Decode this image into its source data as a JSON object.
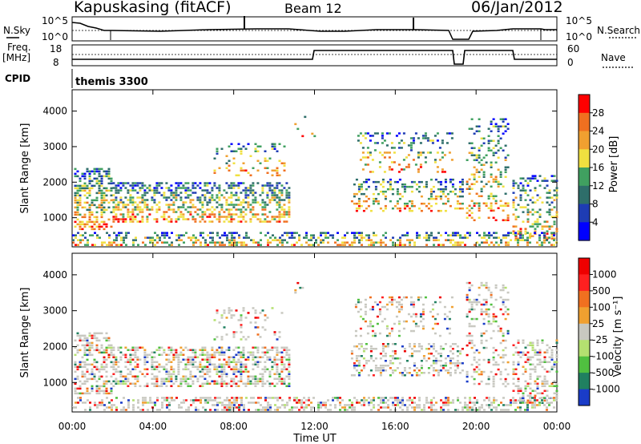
{
  "header": {
    "station": "Kapuskasing (fitACF)",
    "beam": "Beam 12",
    "date": "06/Jan/2012"
  },
  "params": {
    "nsky_label": "N.Sky",
    "nsearch_label": "N.Search",
    "freq_label": "Freq.",
    "freq_unit": "[MHz]",
    "nave_label": "Nave",
    "cpid_label": "CPID",
    "cpid_value": "themis 3300",
    "noise_ticks": [
      "10^5",
      "10^0"
    ],
    "freq_ticks": [
      "18",
      "8"
    ],
    "nave_ticks": [
      "60",
      "0"
    ]
  },
  "chart_data": [
    {
      "type": "heatmap",
      "title": "Power",
      "xlabel": "",
      "ylabel": "Slant Range [km]",
      "x_ticks": [
        "00:00",
        "04:00",
        "08:00",
        "12:00",
        "16:00",
        "20:00",
        "00:00"
      ],
      "xlim_hours": [
        0,
        24
      ],
      "y_ticks": [
        1000,
        2000,
        3000,
        4000
      ],
      "ylim": [
        180,
        4600
      ],
      "colorbar": {
        "label": "Power [dB]",
        "ticks": [
          4,
          8,
          12,
          16,
          20,
          24,
          28
        ],
        "colors": [
          "#0000ff",
          "#1e3cb4",
          "#2e6e6a",
          "#40a060",
          "#f0e040",
          "#f0a030",
          "#f07020",
          "#ff0000"
        ]
      }
    },
    {
      "type": "heatmap",
      "title": "Velocity",
      "xlabel": "Time UT",
      "ylabel": "Slant Range [km]",
      "x_ticks": [
        "00:00",
        "04:00",
        "08:00",
        "12:00",
        "16:00",
        "20:00",
        "00:00"
      ],
      "xlim_hours": [
        0,
        24
      ],
      "y_ticks": [
        1000,
        2000,
        3000,
        4000
      ],
      "ylim": [
        180,
        4600
      ],
      "colorbar": {
        "label": "Velocity [m s⁻¹]",
        "ticks": [
          1000,
          500,
          100,
          25,
          -25,
          -100,
          -500,
          -1000
        ],
        "colors": [
          "#1a3cc8",
          "#208060",
          "#50c040",
          "#b4e070",
          "#c8c8c0",
          "#f0a030",
          "#f07020",
          "#ff2020",
          "#ee0000"
        ]
      }
    }
  ],
  "scatter_regions": [
    {
      "t0": 0.1,
      "t1": 2.0,
      "r0": 700,
      "r1": 2400,
      "density": 0.9
    },
    {
      "t0": 2.0,
      "t1": 10.8,
      "r0": 900,
      "r1": 2000,
      "density": 0.9
    },
    {
      "t0": 7.0,
      "t1": 10.5,
      "r0": 2200,
      "r1": 3100,
      "density": 0.3
    },
    {
      "t0": 11.0,
      "t1": 12.0,
      "r0": 3300,
      "r1": 4000,
      "density": 0.1
    },
    {
      "t0": 13.8,
      "t1": 19.3,
      "r0": 1200,
      "r1": 2100,
      "density": 0.6
    },
    {
      "t0": 14.0,
      "t1": 18.8,
      "r0": 2300,
      "r1": 3400,
      "density": 0.35
    },
    {
      "t0": 19.5,
      "t1": 21.6,
      "r0": 900,
      "r1": 3800,
      "density": 0.5
    },
    {
      "t0": 21.8,
      "t1": 24.0,
      "r0": 400,
      "r1": 2200,
      "density": 0.6
    },
    {
      "t0": 0.0,
      "t1": 24.0,
      "r0": 200,
      "r1": 600,
      "density": 0.8
    }
  ]
}
